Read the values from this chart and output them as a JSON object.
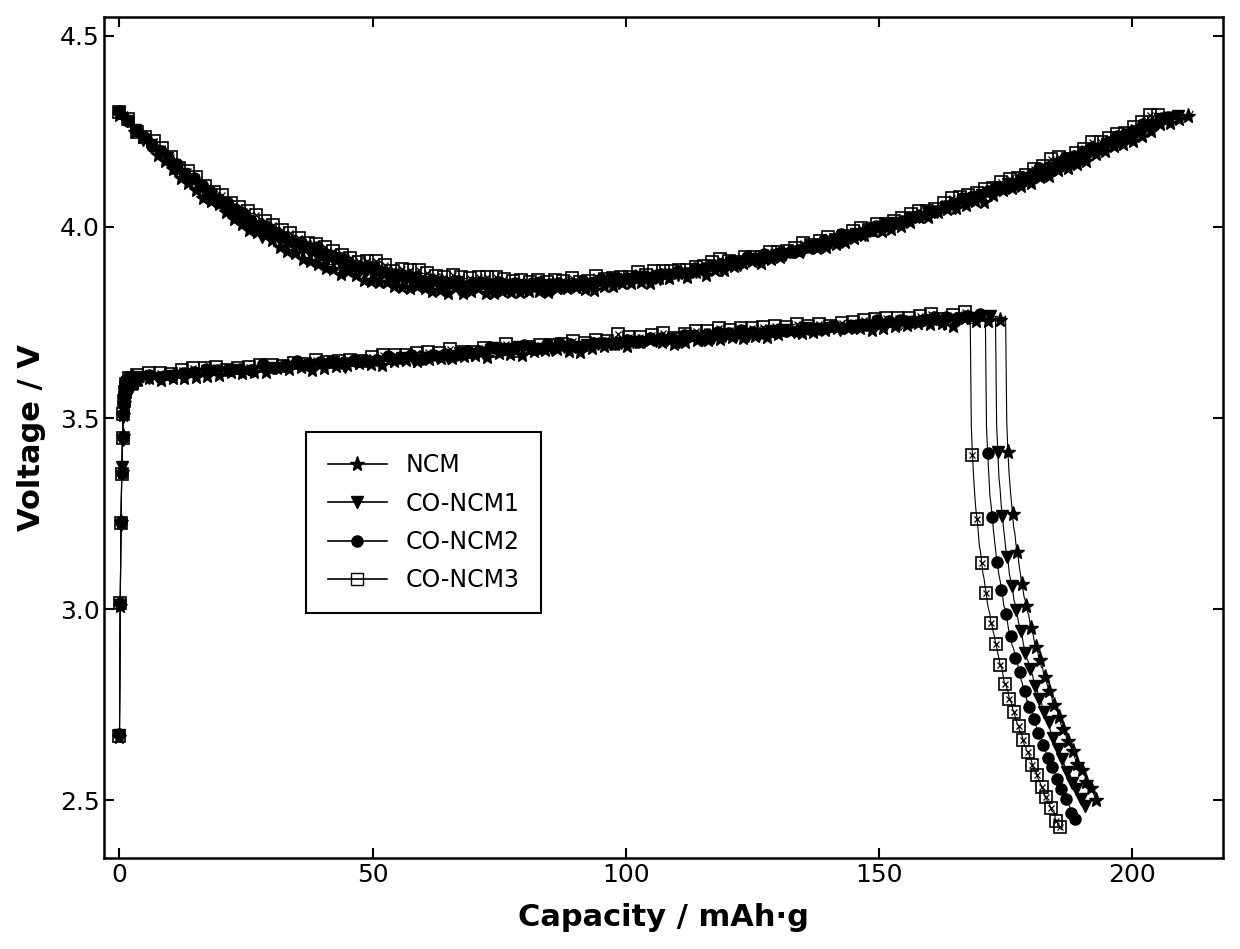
{
  "title": "",
  "xlabel": "Capacity / mAh·g",
  "ylabel": "Voltage / V",
  "xlim": [
    -3,
    218
  ],
  "ylim": [
    2.35,
    4.55
  ],
  "xticks": [
    0,
    50,
    100,
    150,
    200
  ],
  "yticks": [
    2.5,
    3.0,
    3.5,
    4.0,
    4.5
  ],
  "series": [
    "NCM",
    "CO-NCM1",
    "CO-NCM2",
    "CO-NCM3"
  ],
  "color": "#000000",
  "background": "#ffffff",
  "xlabel_fontsize": 22,
  "ylabel_fontsize": 22,
  "tick_fontsize": 18,
  "legend_fontsize": 17,
  "charge_max_caps": [
    212,
    210,
    208,
    206
  ],
  "discharge_max_caps": [
    193,
    191,
    189,
    186
  ]
}
